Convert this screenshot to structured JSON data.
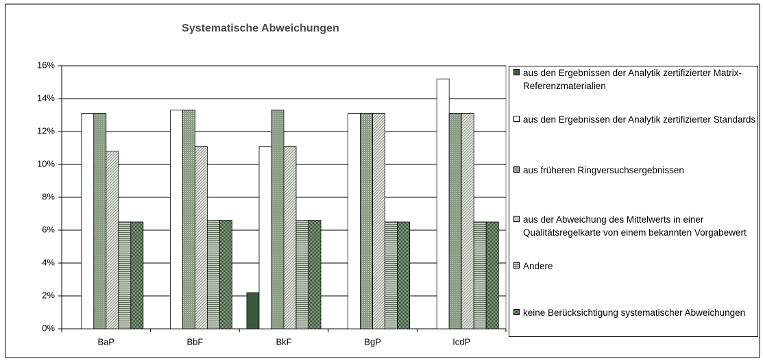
{
  "chart_data": {
    "type": "bar",
    "title": "Systematische Abweichungen",
    "categories": [
      "BaP",
      "BbF",
      "BkF",
      "BgP",
      "IcdP"
    ],
    "series": [
      {
        "name": "aus den Ergebnissen der Analytik zertifizierter Matrix-Referenzmaterialien",
        "color": "#3b5a3b",
        "values": [
          null,
          null,
          2.2,
          null,
          null
        ]
      },
      {
        "name": "aus den Ergebnissen der Analytik zertifizierter Standards",
        "color": "#ffffff",
        "values": [
          13.1,
          13.3,
          11.1,
          13.1,
          15.2
        ]
      },
      {
        "name": "aus früheren Ringversuchsergebnissen",
        "color": "#8c9c86",
        "values": [
          13.1,
          13.3,
          13.3,
          13.1,
          13.1
        ]
      },
      {
        "name": "aus der Abweichung des Mittelwerts in einer Qualitätsregelkarte von einem bekannten Vorgabewert",
        "color": "#dcdfd8",
        "values": [
          10.8,
          11.1,
          11.1,
          13.1,
          13.1
        ]
      },
      {
        "name": "Andere",
        "color": "#a7b1a1",
        "values": [
          6.5,
          6.6,
          6.6,
          6.5,
          6.5
        ]
      },
      {
        "name": "keine Berücksichtigung systematischer Abweichungen",
        "color": "#476747",
        "values": [
          6.5,
          6.6,
          6.6,
          6.5,
          6.5
        ]
      }
    ],
    "ylim": [
      0,
      16
    ],
    "yticks": [
      {
        "value": 0,
        "label": "0%"
      },
      {
        "value": 2,
        "label": "2%"
      },
      {
        "value": 4,
        "label": "4%"
      },
      {
        "value": 6,
        "label": "6%"
      },
      {
        "value": 8,
        "label": "8%"
      },
      {
        "value": 10,
        "label": "10%"
      },
      {
        "value": 12,
        "label": "12%"
      },
      {
        "value": 14,
        "label": "14%"
      },
      {
        "value": 16,
        "label": "16%"
      }
    ],
    "grid": true,
    "legend": "right"
  }
}
